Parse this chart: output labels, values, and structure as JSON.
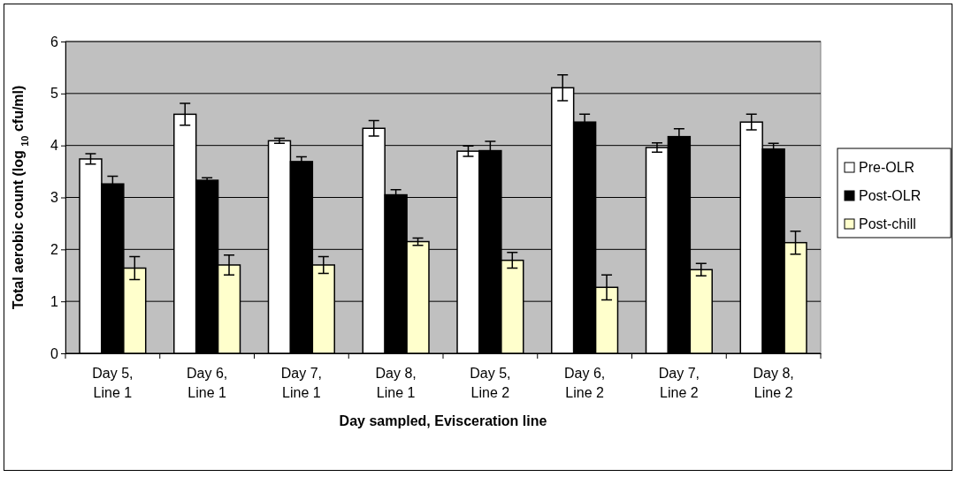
{
  "chart_data": {
    "type": "bar",
    "xlabel": "Day sampled, Evisceration line",
    "ylabel": "Total aerobic count (log $_{10}$ cfu/ml)",
    "categories": [
      "Day 5, Line 1",
      "Day 6, Line 1",
      "Day 7, Line 1",
      "Day 8, Line 1",
      "Day 5, Line 2",
      "Day 6, Line 2",
      "Day 7, Line 2",
      "Day 8, Line 2"
    ],
    "series": [
      {
        "name": "Pre-OLR",
        "color": "#ffffff",
        "values": [
          3.74,
          4.6,
          4.09,
          4.33,
          3.89,
          5.11,
          3.96,
          4.45
        ],
        "errors": [
          0.1,
          0.21,
          0.05,
          0.15,
          0.1,
          0.25,
          0.09,
          0.15
        ]
      },
      {
        "name": "Post-OLR",
        "color": "#000000",
        "values": [
          3.26,
          3.33,
          3.69,
          3.05,
          3.9,
          4.45,
          4.17,
          3.93
        ],
        "errors": [
          0.15,
          0.05,
          0.09,
          0.1,
          0.18,
          0.15,
          0.15,
          0.11
        ]
      },
      {
        "name": "Post-chill",
        "color": "#ffffcc",
        "values": [
          1.64,
          1.7,
          1.7,
          2.15,
          1.79,
          1.27,
          1.61,
          2.13
        ],
        "errors": [
          0.22,
          0.19,
          0.16,
          0.07,
          0.15,
          0.24,
          0.12,
          0.22
        ]
      }
    ],
    "ylim": [
      0,
      6
    ],
    "yticks": [
      0,
      1,
      2,
      3,
      4,
      5,
      6
    ],
    "grid": "y",
    "legend": "right"
  }
}
